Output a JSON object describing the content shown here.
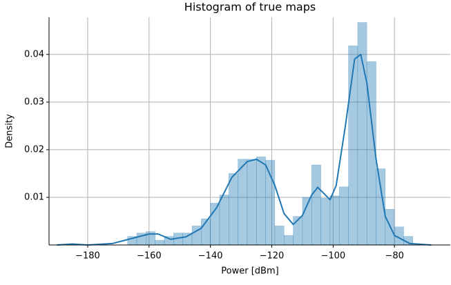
{
  "chart_data": {
    "type": "histogram",
    "title": "Histogram of true maps",
    "xlabel": "Power [dBm]",
    "ylabel": "Density",
    "bins": [
      -167,
      -164,
      -161,
      -158,
      -155,
      -152,
      -149,
      -146,
      -143,
      -140,
      -137,
      -134,
      -131,
      -128,
      -125,
      -122,
      -119,
      -116,
      -113,
      -110,
      -107,
      -104,
      -101,
      -98,
      -95,
      -92,
      -89,
      -86,
      -83,
      -80,
      -77,
      -74
    ],
    "counts": [
      0.0018,
      0.0025,
      0.0028,
      0.001,
      0.0018,
      0.0025,
      0.0025,
      0.004,
      0.0055,
      0.0088,
      0.0105,
      0.015,
      0.018,
      0.018,
      0.0185,
      0.0178,
      0.004,
      0.002,
      0.006,
      0.01,
      0.0168,
      0.0098,
      0.0103,
      0.0122,
      0.0418,
      0.0467,
      0.0385,
      0.016,
      0.0075,
      0.0038,
      0.0018
    ],
    "color": "#1f77b4",
    "kde": {
      "color": "#1f77b4",
      "x": [
        -190,
        -185,
        -180,
        -172,
        -166,
        -160,
        -157,
        -153,
        -148,
        -143,
        -138,
        -133,
        -128,
        -125,
        -122,
        -119,
        -116,
        -113,
        -110,
        -107,
        -105,
        -103,
        -101,
        -99,
        -96,
        -93,
        -91,
        -89,
        -86,
        -83,
        -80,
        -75,
        -68
      ],
      "values": [
        0,
        0.0002,
        0,
        0.0003,
        0.0013,
        0.0023,
        0.0023,
        0.0012,
        0.0017,
        0.0035,
        0.0078,
        0.0142,
        0.0175,
        0.018,
        0.0168,
        0.0125,
        0.0066,
        0.0043,
        0.0062,
        0.0105,
        0.0121,
        0.0108,
        0.0095,
        0.0125,
        0.025,
        0.039,
        0.04,
        0.034,
        0.018,
        0.006,
        0.002,
        0.0003,
        0
      ]
    },
    "xlim": [
      -192.6,
      -61.8
    ],
    "ylim": [
      0,
      0.0478
    ],
    "xticks": [
      {
        "value": -180,
        "label": "−180"
      },
      {
        "value": -160,
        "label": "−160"
      },
      {
        "value": -140,
        "label": "−140"
      },
      {
        "value": -120,
        "label": "−120"
      },
      {
        "value": -100,
        "label": "−100"
      },
      {
        "value": -80,
        "label": "−80"
      }
    ],
    "yticks": [
      0.01,
      0.02,
      0.03,
      0.04
    ],
    "grid": true
  }
}
